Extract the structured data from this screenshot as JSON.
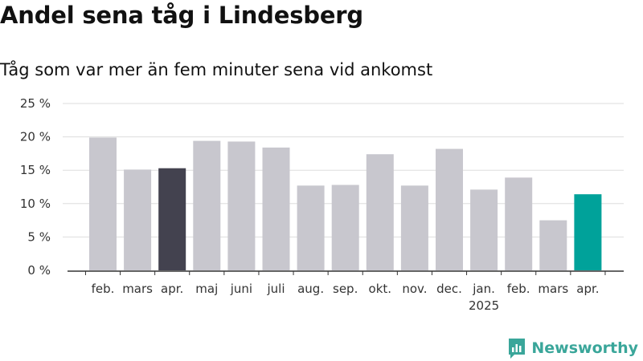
{
  "chart_data": {
    "type": "bar",
    "title": "Andel sena tåg i Lindesberg",
    "subtitle": "Tåg som var mer än fem minuter sena vid ankomst",
    "categories": [
      "feb.",
      "mars",
      "apr.",
      "maj",
      "juni",
      "juli",
      "aug.",
      "sep.",
      "okt.",
      "nov.",
      "dec.",
      "jan.",
      "feb.",
      "mars",
      "apr."
    ],
    "year_labels": {
      "11": "2025"
    },
    "values": [
      19.9,
      15.1,
      15.3,
      19.4,
      19.3,
      18.4,
      12.7,
      12.8,
      17.4,
      12.7,
      18.2,
      12.1,
      13.9,
      7.5,
      11.4
    ],
    "ylim": [
      0,
      25
    ],
    "yticks": [
      0,
      5,
      10,
      15,
      20,
      25
    ],
    "ytick_labels": [
      "0 %",
      "5 %",
      "10 %",
      "15 %",
      "20 %",
      "25 %"
    ],
    "xlabel": "",
    "ylabel": "",
    "grid": true,
    "colors": {
      "default": "#c8c7ce",
      "highlight_previous": "#43424f",
      "highlight_current": "#00a29a",
      "gridline": "#dddddd",
      "axis": "#333333"
    },
    "bar_colors": [
      "default",
      "default",
      "highlight_previous",
      "default",
      "default",
      "default",
      "default",
      "default",
      "default",
      "default",
      "default",
      "default",
      "default",
      "default",
      "highlight_current"
    ]
  },
  "branding": {
    "name": "Newsworthy",
    "icon": "newsworthy-logo-icon",
    "color": "#3aa69a"
  }
}
